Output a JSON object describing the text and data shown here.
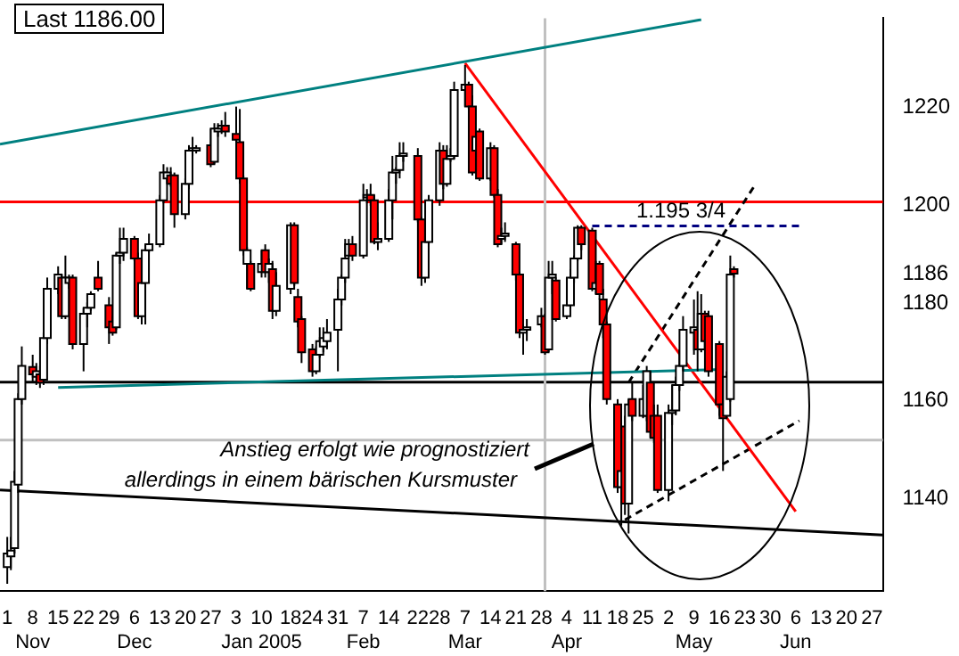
{
  "chart_data": {
    "type": "candlestick",
    "x": [
      "2004-11-01",
      "2004-11-02",
      "2004-11-03",
      "2004-11-04",
      "2004-11-05",
      "2004-11-08",
      "2004-11-09",
      "2004-11-10",
      "2004-11-11",
      "2004-11-12",
      "2004-11-15",
      "2004-11-16",
      "2004-11-17",
      "2004-11-18",
      "2004-11-19",
      "2004-11-22",
      "2004-11-23",
      "2004-11-24",
      "2004-11-26",
      "2004-11-29",
      "2004-11-30",
      "2004-12-01",
      "2004-12-02",
      "2004-12-03",
      "2004-12-06",
      "2004-12-07",
      "2004-12-08",
      "2004-12-09",
      "2004-12-10",
      "2004-12-13",
      "2004-12-14",
      "2004-12-15",
      "2004-12-16",
      "2004-12-17",
      "2004-12-20",
      "2004-12-21",
      "2004-12-22",
      "2004-12-23",
      "2004-12-27",
      "2004-12-28",
      "2004-12-29",
      "2004-12-30",
      "2004-12-31",
      "2005-01-03",
      "2005-01-04",
      "2005-01-05",
      "2005-01-06",
      "2005-01-07",
      "2005-01-10",
      "2005-01-11",
      "2005-01-12",
      "2005-01-13",
      "2005-01-14",
      "2005-01-18",
      "2005-01-19",
      "2005-01-20",
      "2005-01-21",
      "2005-01-24",
      "2005-01-25",
      "2005-01-26",
      "2005-01-27",
      "2005-01-28",
      "2005-01-31",
      "2005-02-01",
      "2005-02-02",
      "2005-02-03",
      "2005-02-04",
      "2005-02-07",
      "2005-02-08",
      "2005-02-09",
      "2005-02-10",
      "2005-02-11",
      "2005-02-14",
      "2005-02-15",
      "2005-02-16",
      "2005-02-17",
      "2005-02-18",
      "2005-02-22",
      "2005-02-23",
      "2005-02-24",
      "2005-02-25",
      "2005-02-28",
      "2005-03-01",
      "2005-03-02",
      "2005-03-03",
      "2005-03-04",
      "2005-03-07",
      "2005-03-08",
      "2005-03-09",
      "2005-03-10",
      "2005-03-11",
      "2005-03-14",
      "2005-03-15",
      "2005-03-16",
      "2005-03-17",
      "2005-03-18",
      "2005-03-21",
      "2005-03-22",
      "2005-03-23",
      "2005-03-24",
      "2005-03-28",
      "2005-03-29",
      "2005-03-30",
      "2005-03-31",
      "2005-04-01",
      "2005-04-04",
      "2005-04-05",
      "2005-04-06",
      "2005-04-07",
      "2005-04-08",
      "2005-04-11",
      "2005-04-12",
      "2005-04-13",
      "2005-04-14",
      "2005-04-15",
      "2005-04-18",
      "2005-04-19",
      "2005-04-20",
      "2005-04-21",
      "2005-04-22",
      "2005-04-25",
      "2005-04-26",
      "2005-04-27",
      "2005-04-28",
      "2005-04-29",
      "2005-05-02",
      "2005-05-03",
      "2005-05-04",
      "2005-05-05",
      "2005-05-06",
      "2005-05-09",
      "2005-05-10",
      "2005-05-11",
      "2005-05-12",
      "2005-05-13",
      "2005-05-16",
      "2005-05-17",
      "2005-05-18",
      "2005-05-19",
      "2005-05-20"
    ],
    "ohlc": [
      [
        1125.9,
        1132.1,
        1122.5,
        1128.7
      ],
      [
        1128.1,
        1132.1,
        1125.3,
        1129.3
      ],
      [
        1129.8,
        1145.6,
        1128.7,
        1143.4
      ],
      [
        1142.8,
        1161.5,
        1141.1,
        1160.3
      ],
      [
        1160.3,
        1171.1,
        1159.2,
        1167.1
      ],
      [
        1166.9,
        1169.4,
        1163.7,
        1165.4
      ],
      [
        1164.9,
        1167.7,
        1163.2,
        1166.0
      ],
      [
        1165.4,
        1167.1,
        1162.6,
        1163.7
      ],
      [
        1164.3,
        1173.9,
        1163.2,
        1172.8
      ],
      [
        1172.8,
        1185.2,
        1171.6,
        1182.9
      ],
      [
        1182.9,
        1187.5,
        1181.8,
        1185.8
      ],
      [
        1185.2,
        1185.8,
        1176.7,
        1177.3
      ],
      [
        1177.3,
        1189.7,
        1176.7,
        1185.2
      ],
      [
        1184.1,
        1185.8,
        1182.9,
        1185.2
      ],
      [
        1185.2,
        1185.8,
        1170.5,
        1171.6
      ],
      [
        1171.6,
        1179.0,
        1166.0,
        1177.8
      ],
      [
        1177.8,
        1180.1,
        1175.0,
        1179.0
      ],
      [
        1179.0,
        1182.4,
        1178.4,
        1181.8
      ],
      [
        1185.2,
        1188.6,
        1182.4,
        1182.9
      ],
      [
        1179.5,
        1181.2,
        1171.6,
        1175.0
      ],
      [
        1176.2,
        1177.3,
        1173.3,
        1173.9
      ],
      [
        1175.0,
        1190.3,
        1174.5,
        1189.7
      ],
      [
        1189.7,
        1195.4,
        1188.0,
        1190.3
      ],
      [
        1190.3,
        1195.4,
        1188.6,
        1193.1
      ],
      [
        1193.1,
        1193.7,
        1188.6,
        1189.1
      ],
      [
        1189.1,
        1190.3,
        1176.7,
        1177.3
      ],
      [
        1177.3,
        1185.2,
        1175.6,
        1184.1
      ],
      [
        1184.1,
        1192.0,
        1175.6,
        1190.8
      ],
      [
        1190.8,
        1194.2,
        1190.3,
        1192.0
      ],
      [
        1192.0,
        1202.1,
        1191.4,
        1201.0
      ],
      [
        1201.0,
        1208.4,
        1200.4,
        1206.7
      ],
      [
        1205.5,
        1207.8,
        1204.4,
        1206.7
      ],
      [
        1206.1,
        1207.8,
        1203.8,
        1204.4
      ],
      [
        1206.1,
        1206.7,
        1195.4,
        1198.2
      ],
      [
        1198.2,
        1205.5,
        1197.1,
        1204.4
      ],
      [
        1204.4,
        1212.3,
        1203.3,
        1211.2
      ],
      [
        1211.2,
        1214.0,
        1210.0,
        1211.7
      ],
      [
        1211.2,
        1212.3,
        1210.6,
        1211.7
      ],
      [
        1212.3,
        1215.7,
        1207.8,
        1208.4
      ],
      [
        1208.9,
        1216.8,
        1208.4,
        1215.7
      ],
      [
        1215.1,
        1216.8,
        1214.0,
        1215.7
      ],
      [
        1215.7,
        1217.4,
        1214.6,
        1216.3
      ],
      [
        1216.3,
        1219.1,
        1214.0,
        1215.1
      ],
      [
        1214.6,
        1220.2,
        1212.9,
        1213.4
      ],
      [
        1212.9,
        1219.7,
        1204.4,
        1205.5
      ],
      [
        1205.5,
        1206.1,
        1189.7,
        1190.8
      ],
      [
        1188.0,
        1191.4,
        1182.9,
        1190.8
      ],
      [
        1188.0,
        1188.6,
        1182.4,
        1182.9
      ],
      [
        1186.3,
        1190.8,
        1185.2,
        1188.0
      ],
      [
        1190.8,
        1192.0,
        1185.2,
        1186.3
      ],
      [
        1186.3,
        1189.1,
        1184.1,
        1188.0
      ],
      [
        1186.9,
        1188.6,
        1176.7,
        1178.4
      ],
      [
        1178.4,
        1186.3,
        1177.3,
        1183.5
      ],
      [
        1182.9,
        1196.5,
        1181.8,
        1195.9
      ],
      [
        1195.9,
        1196.5,
        1183.5,
        1184.1
      ],
      [
        1181.2,
        1182.9,
        1175.0,
        1176.2
      ],
      [
        1176.7,
        1177.3,
        1167.7,
        1169.9
      ],
      [
        1170.5,
        1171.6,
        1164.9,
        1166.0
      ],
      [
        1166.0,
        1171.1,
        1165.4,
        1169.4
      ],
      [
        1169.4,
        1175.0,
        1168.8,
        1172.2
      ],
      [
        1171.1,
        1175.0,
        1169.9,
        1172.8
      ],
      [
        1172.2,
        1176.7,
        1170.5,
        1173.9
      ],
      [
        1174.5,
        1182.9,
        1166.0,
        1180.7
      ],
      [
        1180.7,
        1185.8,
        1179.5,
        1185.2
      ],
      [
        1185.2,
        1193.1,
        1184.1,
        1189.1
      ],
      [
        1189.7,
        1193.1,
        1189.1,
        1192.0
      ],
      [
        1192.0,
        1193.7,
        1188.6,
        1189.7
      ],
      [
        1189.7,
        1204.4,
        1189.1,
        1201.0
      ],
      [
        1201.6,
        1203.3,
        1200.4,
        1202.1
      ],
      [
        1202.1,
        1204.4,
        1199.9,
        1201.0
      ],
      [
        1201.0,
        1202.1,
        1192.0,
        1192.5
      ],
      [
        1192.5,
        1196.5,
        1190.8,
        1193.1
      ],
      [
        1193.1,
        1203.3,
        1192.5,
        1201.0
      ],
      [
        1201.0,
        1210.1,
        1197.1,
        1206.7
      ],
      [
        1206.7,
        1207.8,
        1204.4,
        1207.2
      ],
      [
        1207.2,
        1212.9,
        1205.5,
        1210.1
      ],
      [
        1210.1,
        1212.9,
        1208.9,
        1210.6
      ],
      [
        1210.1,
        1211.7,
        1196.5,
        1197.1
      ],
      [
        1197.1,
        1197.6,
        1183.5,
        1185.2
      ],
      [
        1185.2,
        1193.7,
        1184.1,
        1192.5
      ],
      [
        1192.5,
        1202.1,
        1192.0,
        1201.0
      ],
      [
        1201.0,
        1212.9,
        1199.9,
        1211.2
      ],
      [
        1211.2,
        1212.3,
        1203.3,
        1204.4
      ],
      [
        1204.4,
        1212.3,
        1203.8,
        1209.5
      ],
      [
        1209.5,
        1211.7,
        1208.9,
        1210.1
      ],
      [
        1210.1,
        1225.3,
        1209.5,
        1223.6
      ],
      [
        1223.6,
        1228.7,
        1220.2,
        1224.7
      ],
      [
        1224.7,
        1225.3,
        1219.7,
        1220.2
      ],
      [
        1220.2,
        1222.5,
        1206.1,
        1206.7
      ],
      [
        1211.2,
        1215.1,
        1208.9,
        1214.0
      ],
      [
        1215.1,
        1215.7,
        1205.0,
        1205.5
      ],
      [
        1205.5,
        1212.9,
        1205.0,
        1211.7
      ],
      [
        1211.7,
        1212.3,
        1201.6,
        1202.1
      ],
      [
        1202.1,
        1203.3,
        1191.4,
        1192.0
      ],
      [
        1193.1,
        1195.4,
        1192.0,
        1193.7
      ],
      [
        1193.7,
        1196.5,
        1192.5,
        1194.2
      ],
      [
        1192.0,
        1192.5,
        1184.6,
        1185.8
      ],
      [
        1185.8,
        1186.3,
        1172.8,
        1173.9
      ],
      [
        1173.9,
        1175.6,
        1169.4,
        1174.5
      ],
      [
        1174.5,
        1176.7,
        1172.2,
        1175.0
      ],
      [
        1175.6,
        1179.0,
        1175.0,
        1177.3
      ],
      [
        1177.3,
        1177.8,
        1169.4,
        1169.9
      ],
      [
        1170.5,
        1188.6,
        1169.9,
        1185.2
      ],
      [
        1185.2,
        1188.6,
        1181.8,
        1185.8
      ],
      [
        1184.6,
        1185.2,
        1176.2,
        1176.7
      ],
      [
        1177.3,
        1185.2,
        1176.7,
        1179.5
      ],
      [
        1179.5,
        1186.9,
        1179.0,
        1185.2
      ],
      [
        1185.2,
        1189.7,
        1184.1,
        1189.1
      ],
      [
        1189.1,
        1195.9,
        1188.6,
        1195.4
      ],
      [
        1195.4,
        1195.9,
        1190.8,
        1192.0
      ],
      [
        1194.8,
        1195.4,
        1182.4,
        1182.9
      ],
      [
        1182.9,
        1188.6,
        1181.8,
        1184.1
      ],
      [
        1188.0,
        1188.6,
        1180.7,
        1181.8
      ],
      [
        1180.7,
        1182.9,
        1172.8,
        1175.6
      ],
      [
        1175.6,
        1176.2,
        1159.2,
        1160.3
      ],
      [
        1159.2,
        1160.3,
        1141.1,
        1142.3
      ],
      [
        1142.3,
        1146.8,
        1134.4,
        1145.6
      ],
      [
        1154.7,
        1156.9,
        1136.6,
        1138.9
      ],
      [
        1138.9,
        1160.3,
        1132.8,
        1159.2
      ],
      [
        1160.3,
        1163.7,
        1155.8,
        1156.9
      ],
      [
        1156.9,
        1163.2,
        1156.4,
        1160.3
      ],
      [
        1156.9,
        1167.1,
        1155.8,
        1166.0
      ],
      [
        1163.7,
        1166.0,
        1152.4,
        1153.6
      ],
      [
        1156.9,
        1159.2,
        1151.3,
        1152.4
      ],
      [
        1156.9,
        1159.2,
        1141.1,
        1141.7
      ],
      [
        1141.7,
        1159.2,
        1139.4,
        1157.5
      ],
      [
        1157.5,
        1163.2,
        1155.0,
        1158.0
      ],
      [
        1158.0,
        1164.9,
        1157.0,
        1163.2
      ],
      [
        1163.2,
        1170.5,
        1162.0,
        1167.1
      ],
      [
        1167.1,
        1177.3,
        1166.0,
        1174.5
      ],
      [
        1173.9,
        1180.7,
        1169.4,
        1175.0
      ],
      [
        1174.5,
        1182.4,
        1166.0,
        1170.5
      ],
      [
        1170.5,
        1181.8,
        1169.9,
        1177.8
      ],
      [
        1177.8,
        1178.4,
        1170.5,
        1172.2
      ],
      [
        1177.3,
        1178.4,
        1164.9,
        1166.0
      ],
      [
        1171.6,
        1172.2,
        1156.9,
        1159.2
      ],
      [
        1159.2,
        1164.9,
        1145.6,
        1156.4
      ],
      [
        1156.9,
        1166.0,
        1156.4,
        1164.9
      ],
      [
        1160.3,
        1189.7,
        1159.8,
        1185.8
      ],
      [
        1186.9,
        1187.5,
        1185.2,
        1186.0
      ]
    ],
    "series": [
      {
        "type": "line",
        "color": "#008080",
        "x": [
          "2004-10-30",
          "2005-05-11"
        ],
        "values": [
          1212.5,
          1238.0
        ]
      },
      {
        "type": "line",
        "color": "#008080",
        "x": [
          "2004-11-15",
          "2005-05-17"
        ],
        "values": [
          1162.7,
          1166.4
        ]
      },
      {
        "type": "line",
        "color": "#000000",
        "x": [
          "2004-10-30",
          "2005-06-30"
        ],
        "values": [
          1141.7,
          1132.5
        ]
      },
      {
        "type": "line",
        "color": "#ff0000",
        "x": [
          "2005-03-07",
          "2005-06-06"
        ],
        "values": [
          1229.1,
          1137.3
        ]
      },
      {
        "type": "line",
        "color": "#000080",
        "line_style": "dashed",
        "x": [
          "2005-04-11",
          "2005-06-08"
        ],
        "values": [
          1195.75,
          1195.75
        ]
      },
      {
        "type": "line",
        "color": "#000000",
        "line_style": "dashed",
        "x": [
          "2005-04-21",
          "2005-05-26"
        ],
        "values": [
          1163.7,
          1204.4
        ]
      },
      {
        "type": "line",
        "color": "#000000",
        "line_style": "dashed",
        "x": [
          "2005-04-20",
          "2005-06-07"
        ],
        "values": [
          1135.6,
          1155.9
        ]
      }
    ],
    "ref_lines": [
      {
        "axis": "y",
        "value": 1200.7,
        "color": "#ff0000"
      },
      {
        "axis": "y",
        "value": 1163.8,
        "color": "#000000"
      },
      {
        "axis": "y",
        "value": 1151.9,
        "color": "#c0c0c0"
      },
      {
        "axis": "x",
        "value": "2005-03-29",
        "color": "#c0c0c0"
      }
    ],
    "annotations": [
      "Last 1186.00",
      "Anstieg erfolgt wie prognostiziert",
      "allerdings in einem bärischen Kursmuster",
      "1.195 3/4"
    ],
    "xlim": [
      "2004-10-30",
      "2005-06-30"
    ],
    "xticks": [
      {
        "value": "2004-11-01",
        "label": "1"
      },
      {
        "value": "2004-11-08",
        "label": "8\nNov"
      },
      {
        "value": "2004-11-15",
        "label": "15"
      },
      {
        "value": "2004-11-22",
        "label": "22"
      },
      {
        "value": "2004-11-29",
        "label": "29"
      },
      {
        "value": "2004-12-06",
        "label": "6\nDec"
      },
      {
        "value": "2004-12-13",
        "label": "13"
      },
      {
        "value": "2004-12-20",
        "label": "20"
      },
      {
        "value": "2004-12-27",
        "label": "27"
      },
      {
        "value": "2005-01-03",
        "label": "3"
      },
      {
        "value": "2005-01-10",
        "label": "10\nJan 2005"
      },
      {
        "value": "2005-01-18",
        "label": "18"
      },
      {
        "value": "2005-01-24",
        "label": "24"
      },
      {
        "value": "2005-01-31",
        "label": "31"
      },
      {
        "value": "2005-02-07",
        "label": "7\nFeb"
      },
      {
        "value": "2005-02-14",
        "label": "14"
      },
      {
        "value": "2005-02-22",
        "label": "22"
      },
      {
        "value": "2005-02-28",
        "label": "28"
      },
      {
        "value": "2005-03-07",
        "label": "7\nMar"
      },
      {
        "value": "2005-03-14",
        "label": "14"
      },
      {
        "value": "2005-03-21",
        "label": "21"
      },
      {
        "value": "2005-03-28",
        "label": "28"
      },
      {
        "value": "2005-04-04",
        "label": "4\nApr"
      },
      {
        "value": "2005-04-11",
        "label": "11"
      },
      {
        "value": "2005-04-18",
        "label": "18"
      },
      {
        "value": "2005-04-25",
        "label": "25"
      },
      {
        "value": "2005-05-02",
        "label": "2"
      },
      {
        "value": "2005-05-09",
        "label": "9\nMay"
      },
      {
        "value": "2005-05-16",
        "label": "16"
      },
      {
        "value": "2005-05-23",
        "label": "23"
      },
      {
        "value": "2005-05-30",
        "label": "30"
      },
      {
        "value": "2005-06-06",
        "label": "6\nJun"
      },
      {
        "value": "2005-06-13",
        "label": "13"
      },
      {
        "value": "2005-06-20",
        "label": "20"
      },
      {
        "value": "2005-06-27",
        "label": "27"
      }
    ],
    "ylim": [
      1121,
      1238.3
    ],
    "yticks": [
      1140,
      1160,
      1180,
      {
        "value": 1186,
        "label": "1186"
      },
      1200,
      1220
    ],
    "grid": false,
    "legend": false
  }
}
